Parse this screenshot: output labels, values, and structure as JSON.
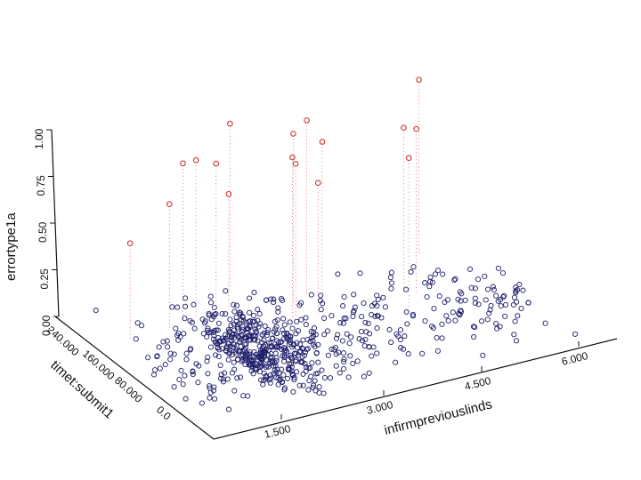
{
  "chart_data": {
    "type": "scatter",
    "projection": "3d",
    "z_axis": {
      "label": "errortype1a",
      "ticks": [
        "0.00",
        "0.25",
        "0.50",
        "0.75",
        "1.00"
      ],
      "range": [
        0,
        1
      ]
    },
    "x_axis": {
      "label": "infirmpreviouslinds",
      "ticks": [
        "1.500",
        "3.000",
        "4.500",
        "6.000"
      ]
    },
    "y_axis": {
      "label": "timet:submit1",
      "ticks": [
        "0.0",
        "80.000",
        "160.000",
        "240.000"
      ]
    },
    "grid": false,
    "legend": "none",
    "colors": {
      "base_points": "#1c1c6a",
      "high_points": "#cc2222",
      "axis": "#111111"
    },
    "highlighted_points": [
      {
        "x": 1.2,
        "y": 180,
        "z": 0.57
      },
      {
        "x": 1.8,
        "y": 180,
        "z": 0.73
      },
      {
        "x": 2.1,
        "y": 190,
        "z": 0.9
      },
      {
        "x": 2.3,
        "y": 190,
        "z": 0.9
      },
      {
        "x": 2.7,
        "y": 200,
        "z": 0.82
      },
      {
        "x": 2.8,
        "y": 190,
        "z": 0.67
      },
      {
        "x": 3.1,
        "y": 220,
        "z": 0.95
      },
      {
        "x": 3.4,
        "y": 150,
        "z": 0.92
      },
      {
        "x": 3.45,
        "y": 150,
        "z": 0.88
      },
      {
        "x": 3.6,
        "y": 170,
        "z": 0.98
      },
      {
        "x": 3.7,
        "y": 140,
        "z": 0.78
      },
      {
        "x": 3.9,
        "y": 180,
        "z": 1.0
      },
      {
        "x": 3.95,
        "y": 160,
        "z": 0.93
      },
      {
        "x": 4.9,
        "y": 120,
        "z": 0.86
      },
      {
        "x": 5.1,
        "y": 150,
        "z": 0.93
      },
      {
        "x": 5.2,
        "y": 140,
        "z": 0.94
      },
      {
        "x": 5.8,
        "y": 200,
        "z": 1.0
      }
    ],
    "note_points": "About 700 data points have errortype1a values near 0, spread across both horizontal axes."
  }
}
